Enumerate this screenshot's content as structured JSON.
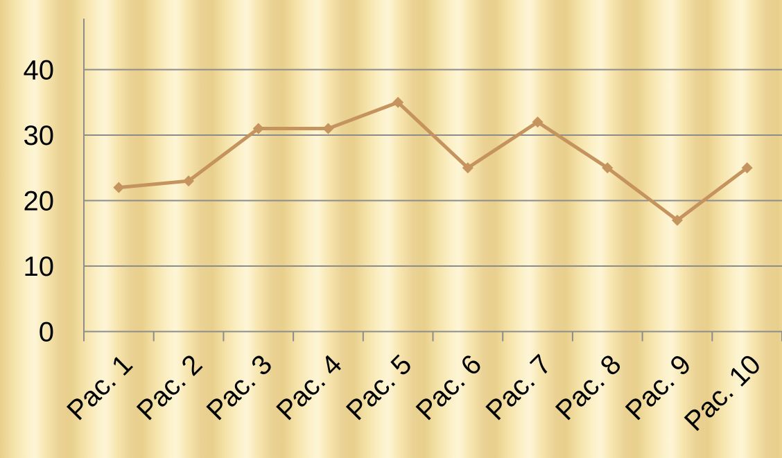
{
  "chart_data": {
    "type": "line",
    "categories": [
      "Pac. 1",
      "Pac. 2",
      "Pac. 3",
      "Pac. 4",
      "Pac. 5",
      "Pac. 6",
      "Pac. 7",
      "Pac. 8",
      "Pac. 9",
      "Pac. 10"
    ],
    "series": [
      {
        "values": [
          22,
          23,
          31,
          31,
          35,
          25,
          32,
          25,
          17,
          25
        ]
      }
    ],
    "yticks": [
      "0",
      "10",
      "20",
      "30",
      "40"
    ],
    "ylim": [
      0,
      48
    ],
    "grid": true,
    "legend": "none",
    "colors": {
      "line": "#c4935e",
      "grid": "#8c8c8c",
      "axis": "#8c8c8c"
    }
  }
}
